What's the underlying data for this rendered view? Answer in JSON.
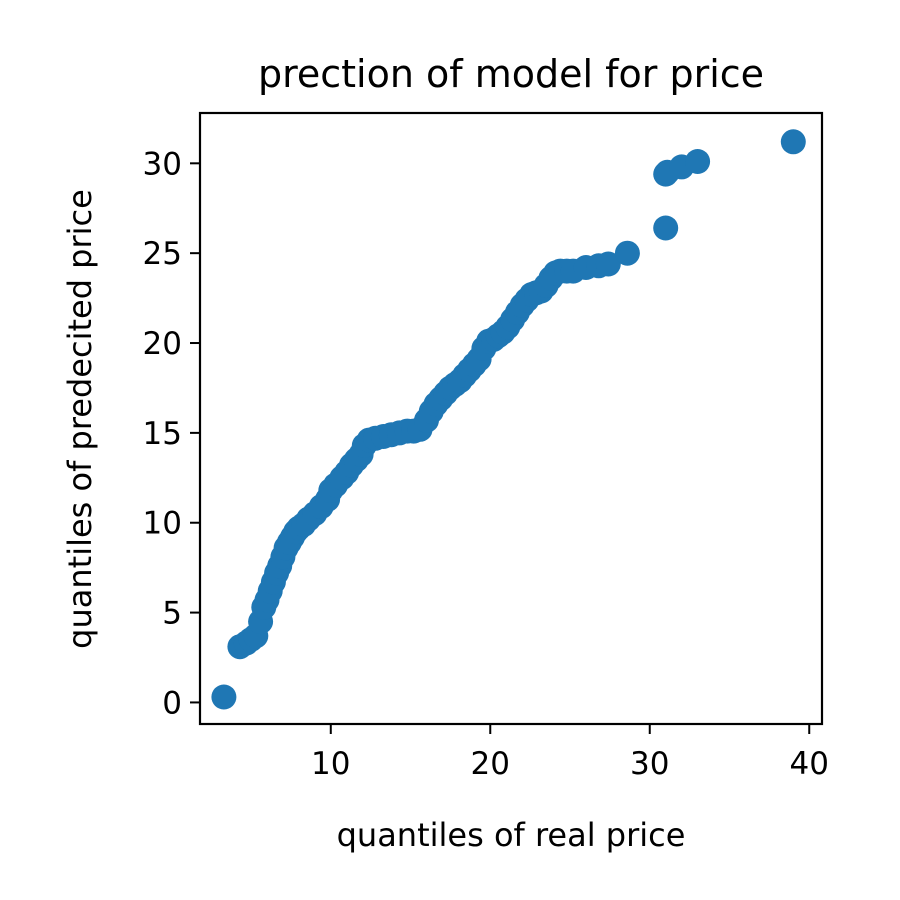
{
  "chart_data": {
    "type": "scatter",
    "title": "prection of model for price",
    "xlabel": "quantiles of real price",
    "ylabel": "quantiles of predecited price",
    "xlim": [
      1.8,
      40.8
    ],
    "ylim": [
      -1.2,
      32.8
    ],
    "xticks": [
      "10",
      "20",
      "30",
      "40"
    ],
    "yticks": [
      "0",
      "5",
      "10",
      "15",
      "20",
      "25",
      "30"
    ],
    "grid": false,
    "marker_color": "#1f77b4",
    "points": {
      "x": [
        3.3,
        4.3,
        4.7,
        5.0,
        5.3,
        5.6,
        5.8,
        6.0,
        6.2,
        6.4,
        6.6,
        6.8,
        7.0,
        7.2,
        7.4,
        7.6,
        7.8,
        8.0,
        8.3,
        8.6,
        9.0,
        9.4,
        9.8,
        10.0,
        10.3,
        10.7,
        11.0,
        11.3,
        11.6,
        11.9,
        12.1,
        12.4,
        12.8,
        13.3,
        13.8,
        14.3,
        14.8,
        15.2,
        15.6,
        16.0,
        16.3,
        16.6,
        16.9,
        17.2,
        17.5,
        17.8,
        18.1,
        18.4,
        18.7,
        19.0,
        19.3,
        19.6,
        19.9,
        20.2,
        20.5,
        20.8,
        21.1,
        21.4,
        21.7,
        22.0,
        22.3,
        22.6,
        22.9,
        23.2,
        23.5,
        23.8,
        24.1,
        24.4,
        24.8,
        25.2,
        26.0,
        26.8,
        27.4,
        28.6,
        31.0,
        31.0,
        31.1,
        32.0,
        33.0,
        39.0
      ],
      "y": [
        0.3,
        3.1,
        3.3,
        3.5,
        3.7,
        4.5,
        5.3,
        5.7,
        6.2,
        6.7,
        7.2,
        7.6,
        8.1,
        8.6,
        8.9,
        9.2,
        9.5,
        9.7,
        9.9,
        10.2,
        10.5,
        10.9,
        11.3,
        11.8,
        12.1,
        12.5,
        12.8,
        13.2,
        13.5,
        13.8,
        14.3,
        14.6,
        14.7,
        14.8,
        14.9,
        15.0,
        15.1,
        15.1,
        15.2,
        15.7,
        16.2,
        16.6,
        16.9,
        17.2,
        17.5,
        17.7,
        17.9,
        18.2,
        18.5,
        18.8,
        19.1,
        19.7,
        20.1,
        20.2,
        20.4,
        20.6,
        20.9,
        21.3,
        21.7,
        22.1,
        22.4,
        22.7,
        22.8,
        22.9,
        23.2,
        23.6,
        23.9,
        24.0,
        24.0,
        24.0,
        24.2,
        24.3,
        24.4,
        25.0,
        26.4,
        29.4,
        29.5,
        29.8,
        30.1,
        31.2
      ]
    }
  }
}
